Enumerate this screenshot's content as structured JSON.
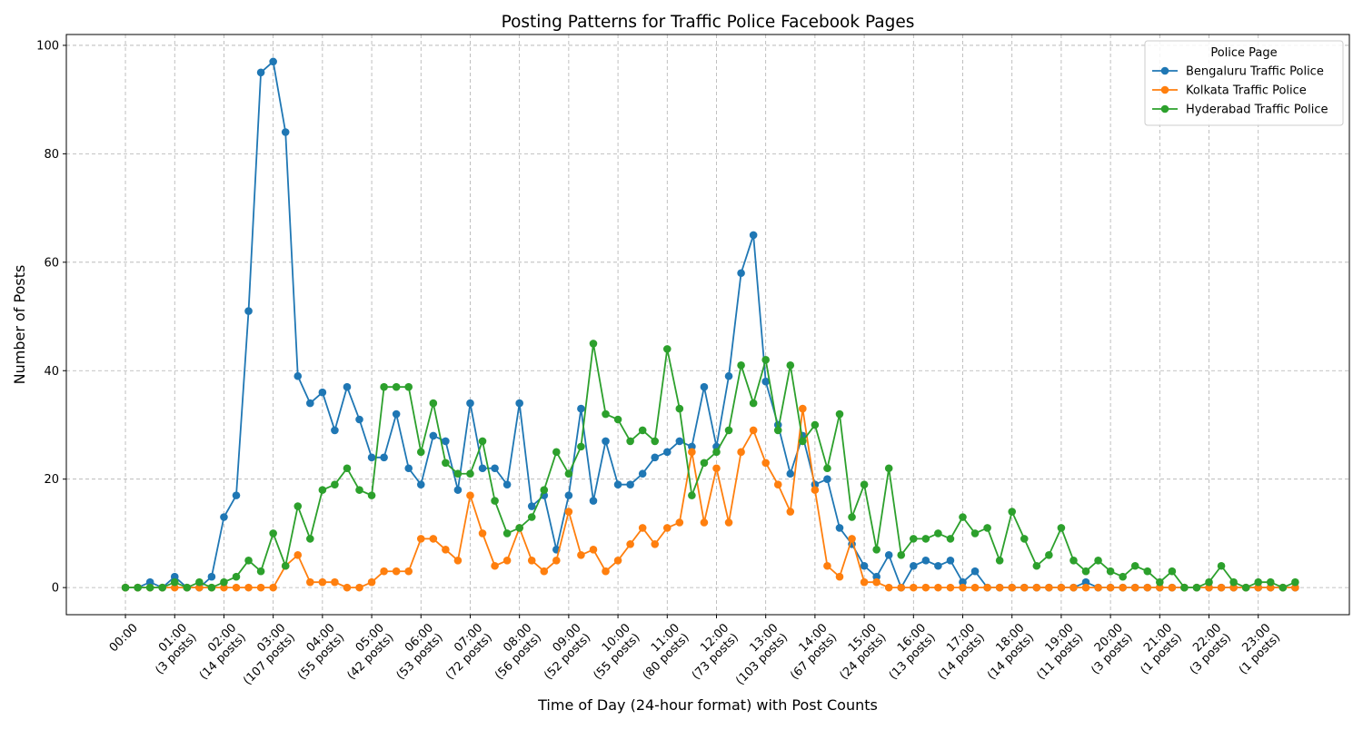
{
  "chart_data": {
    "type": "line",
    "title": "Posting Patterns for Traffic Police Facebook Pages",
    "xlabel": "Time of Day (24-hour format) with Post Counts",
    "ylabel": "Number of Posts",
    "ylim": [
      -5,
      102
    ],
    "yticks": [
      0,
      20,
      40,
      60,
      80,
      100
    ],
    "grid": true,
    "grid_style": "dashed",
    "legend_title": "Police Page",
    "legend_position": "top-right",
    "x_step_hours": 0.25,
    "xlim_hours": [
      -1.2,
      24.85
    ],
    "xtick_labels": [
      {
        "hour": 0,
        "time": "00:00",
        "count": ""
      },
      {
        "hour": 1,
        "time": "01:00",
        "count": "(3 posts)"
      },
      {
        "hour": 2,
        "time": "02:00",
        "count": "(14 posts)"
      },
      {
        "hour": 3,
        "time": "03:00",
        "count": "(107 posts)"
      },
      {
        "hour": 4,
        "time": "04:00",
        "count": "(55 posts)"
      },
      {
        "hour": 5,
        "time": "05:00",
        "count": "(42 posts)"
      },
      {
        "hour": 6,
        "time": "06:00",
        "count": "(53 posts)"
      },
      {
        "hour": 7,
        "time": "07:00",
        "count": "(72 posts)"
      },
      {
        "hour": 8,
        "time": "08:00",
        "count": "(56 posts)"
      },
      {
        "hour": 9,
        "time": "09:00",
        "count": "(52 posts)"
      },
      {
        "hour": 10,
        "time": "10:00",
        "count": "(55 posts)"
      },
      {
        "hour": 11,
        "time": "11:00",
        "count": "(80 posts)"
      },
      {
        "hour": 12,
        "time": "12:00",
        "count": "(73 posts)"
      },
      {
        "hour": 13,
        "time": "13:00",
        "count": "(103 posts)"
      },
      {
        "hour": 14,
        "time": "14:00",
        "count": "(67 posts)"
      },
      {
        "hour": 15,
        "time": "15:00",
        "count": "(24 posts)"
      },
      {
        "hour": 16,
        "time": "16:00",
        "count": "(13 posts)"
      },
      {
        "hour": 17,
        "time": "17:00",
        "count": "(14 posts)"
      },
      {
        "hour": 18,
        "time": "18:00",
        "count": "(14 posts)"
      },
      {
        "hour": 19,
        "time": "19:00",
        "count": "(11 posts)"
      },
      {
        "hour": 20,
        "time": "20:00",
        "count": "(3 posts)"
      },
      {
        "hour": 21,
        "time": "21:00",
        "count": "(1 posts)"
      },
      {
        "hour": 22,
        "time": "22:00",
        "count": "(3 posts)"
      },
      {
        "hour": 23,
        "time": "23:00",
        "count": "(1 posts)"
      }
    ],
    "series": [
      {
        "name": "Bengaluru Traffic Police",
        "color": "#1f77b4",
        "values": [
          0,
          0,
          1,
          0,
          2,
          0,
          0,
          2,
          13,
          17,
          51,
          95,
          97,
          84,
          39,
          34,
          36,
          29,
          37,
          31,
          24,
          24,
          32,
          22,
          19,
          28,
          27,
          18,
          34,
          22,
          22,
          19,
          34,
          15,
          17,
          7,
          17,
          33,
          16,
          27,
          19,
          19,
          21,
          24,
          25,
          27,
          26,
          37,
          26,
          39,
          58,
          65,
          38,
          30,
          21,
          28,
          19,
          20,
          11,
          8,
          4,
          2,
          6,
          0,
          4,
          5,
          4,
          5,
          1,
          3,
          0,
          0,
          0,
          0,
          0,
          0,
          0,
          0,
          1,
          0,
          0,
          0,
          0,
          0,
          0,
          0,
          0,
          0,
          0,
          0,
          0,
          0,
          0,
          0,
          0,
          0
        ]
      },
      {
        "name": "Kolkata Traffic Police",
        "color": "#ff7f0e",
        "values": [
          0,
          0,
          0,
          0,
          0,
          0,
          0,
          0,
          0,
          0,
          0,
          0,
          0,
          4,
          6,
          1,
          1,
          1,
          0,
          0,
          1,
          3,
          3,
          3,
          9,
          9,
          7,
          5,
          17,
          10,
          4,
          5,
          11,
          5,
          3,
          5,
          14,
          6,
          7,
          3,
          5,
          8,
          11,
          8,
          11,
          12,
          25,
          12,
          22,
          12,
          25,
          29,
          23,
          19,
          14,
          33,
          18,
          4,
          2,
          9,
          1,
          1,
          0,
          0,
          0,
          0,
          0,
          0,
          0,
          0,
          0,
          0,
          0,
          0,
          0,
          0,
          0,
          0,
          0,
          0,
          0,
          0,
          0,
          0,
          0,
          0,
          0,
          0,
          0,
          0,
          0,
          0,
          0,
          0,
          0,
          0
        ]
      },
      {
        "name": "Hyderabad Traffic Police",
        "color": "#2ca02c",
        "values": [
          0,
          0,
          0,
          0,
          1,
          0,
          1,
          0,
          1,
          2,
          5,
          3,
          10,
          4,
          15,
          9,
          18,
          19,
          22,
          18,
          17,
          37,
          37,
          37,
          25,
          34,
          23,
          21,
          21,
          27,
          16,
          10,
          11,
          13,
          18,
          25,
          21,
          26,
          45,
          32,
          31,
          27,
          29,
          27,
          44,
          33,
          17,
          23,
          25,
          29,
          41,
          34,
          42,
          29,
          41,
          27,
          30,
          22,
          32,
          13,
          19,
          7,
          22,
          6,
          9,
          9,
          10,
          9,
          13,
          10,
          11,
          5,
          14,
          9,
          4,
          6,
          11,
          5,
          3,
          5,
          3,
          2,
          4,
          3,
          1,
          3,
          0,
          0,
          1,
          4,
          1,
          0,
          1,
          1,
          0,
          1
        ]
      }
    ]
  }
}
